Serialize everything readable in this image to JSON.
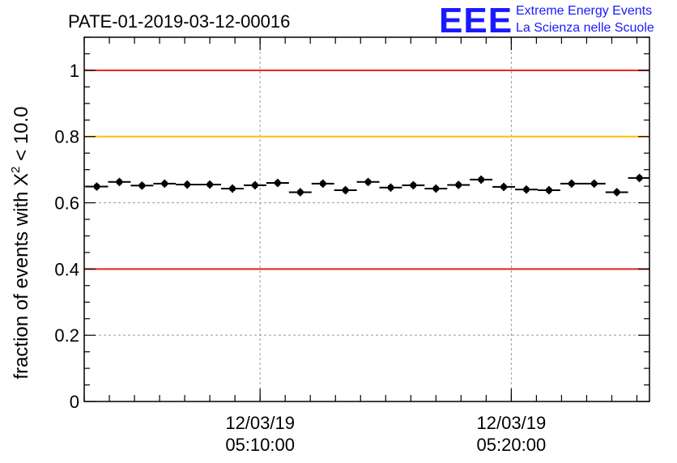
{
  "header": {
    "run_title": "PATE-01-2019-03-12-00016"
  },
  "logo": {
    "mark": "EEE",
    "line1": "Extreme Energy Events",
    "line2": "La Scienza nelle Scuole",
    "color": "#1a1aff"
  },
  "chart_data": {
    "type": "scatter",
    "title": "PATE-01-2019-03-12-00016",
    "xlabel": "",
    "ylabel": "fraction of events with χ² < 10.0",
    "ylabel_parts": {
      "prefix": "fraction of events with ",
      "symbol": "X",
      "superscript": "2",
      "suffix": " < 10.0"
    },
    "xlim": [
      "05:03:00",
      "05:25:30"
    ],
    "ylim": [
      0,
      1.1
    ],
    "y_ticks": [
      0,
      0.2,
      0.4,
      0.6,
      0.8,
      1
    ],
    "y_tick_labels": [
      "0",
      "0.2",
      "0.4",
      "0.6",
      "0.8",
      "1"
    ],
    "x_ticks": [
      {
        "time": "05:10:00",
        "date_label": "12/03/19",
        "time_label": "05:10:00"
      },
      {
        "time": "05:20:00",
        "date_label": "12/03/19",
        "time_label": "05:20:00"
      }
    ],
    "grid": true,
    "reference_lines": [
      {
        "y": 1.0,
        "color": "#e8211a"
      },
      {
        "y": 0.8,
        "color": "#ffc000"
      },
      {
        "y": 0.4,
        "color": "#e8211a"
      }
    ],
    "bin_width_minutes": 0.9,
    "series": [
      {
        "marker_color": "#000000",
        "points": [
          {
            "t": "05:03:30",
            "y": 0.649
          },
          {
            "t": "05:04:24",
            "y": 0.663
          },
          {
            "t": "05:05:18",
            "y": 0.652
          },
          {
            "t": "05:06:12",
            "y": 0.658
          },
          {
            "t": "05:07:06",
            "y": 0.655
          },
          {
            "t": "05:08:00",
            "y": 0.655
          },
          {
            "t": "05:08:54",
            "y": 0.643
          },
          {
            "t": "05:09:48",
            "y": 0.653
          },
          {
            "t": "05:10:42",
            "y": 0.66
          },
          {
            "t": "05:11:36",
            "y": 0.632
          },
          {
            "t": "05:12:30",
            "y": 0.658
          },
          {
            "t": "05:13:24",
            "y": 0.638
          },
          {
            "t": "05:14:18",
            "y": 0.663
          },
          {
            "t": "05:15:12",
            "y": 0.646
          },
          {
            "t": "05:16:06",
            "y": 0.653
          },
          {
            "t": "05:17:00",
            "y": 0.643
          },
          {
            "t": "05:17:54",
            "y": 0.654
          },
          {
            "t": "05:18:48",
            "y": 0.67
          },
          {
            "t": "05:19:42",
            "y": 0.648
          },
          {
            "t": "05:20:36",
            "y": 0.64
          },
          {
            "t": "05:21:30",
            "y": 0.638
          },
          {
            "t": "05:22:24",
            "y": 0.658
          },
          {
            "t": "05:23:18",
            "y": 0.658
          },
          {
            "t": "05:24:12",
            "y": 0.632
          },
          {
            "t": "05:25:06",
            "y": 0.675
          }
        ]
      }
    ]
  }
}
